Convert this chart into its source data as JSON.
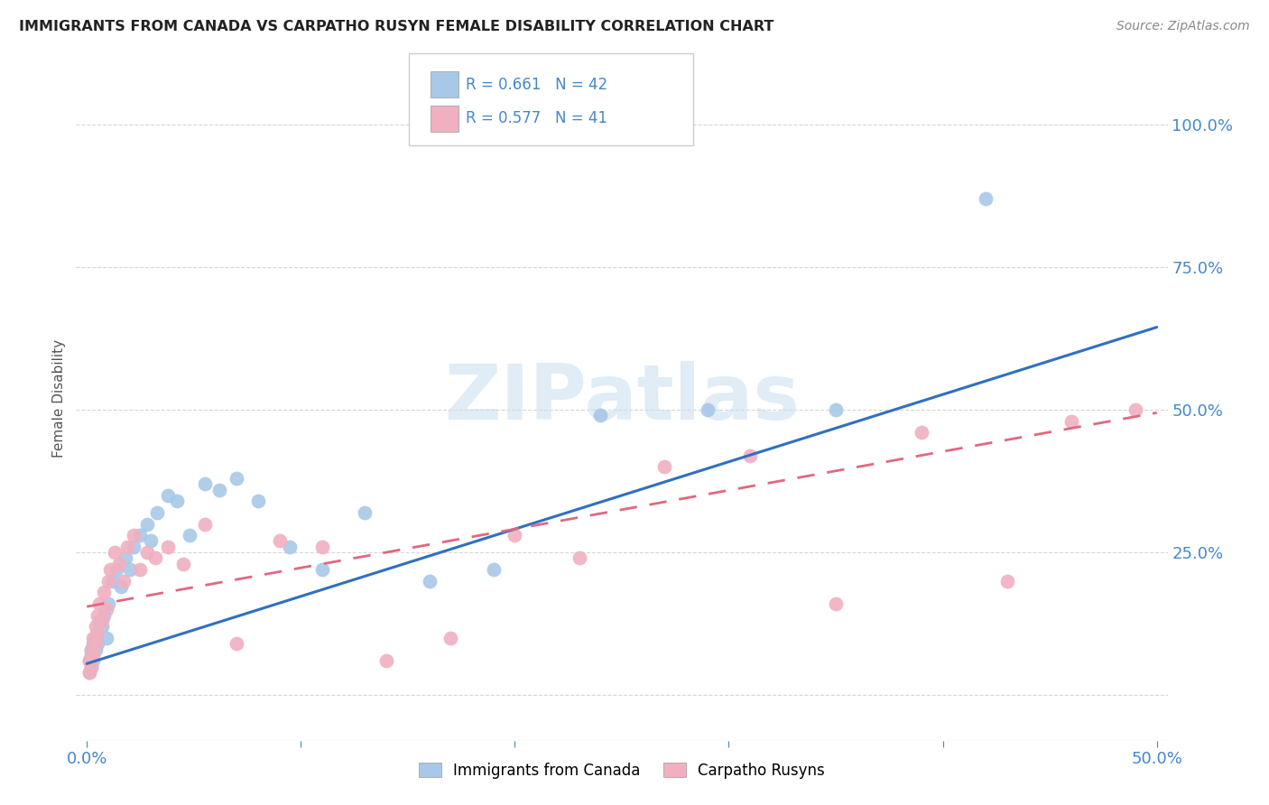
{
  "title": "IMMIGRANTS FROM CANADA VS CARPATHO RUSYN FEMALE DISABILITY CORRELATION CHART",
  "source": "Source: ZipAtlas.com",
  "ylabel": "Female Disability",
  "xlim": [
    -0.005,
    0.505
  ],
  "ylim": [
    -0.08,
    1.12
  ],
  "xtick_positions": [
    0.0,
    0.1,
    0.2,
    0.3,
    0.4,
    0.5
  ],
  "xtick_labels": [
    "0.0%",
    "",
    "",
    "",
    "",
    "50.0%"
  ],
  "ytick_positions": [
    0.0,
    0.25,
    0.5,
    0.75,
    1.0
  ],
  "ytick_labels": [
    "",
    "25.0%",
    "50.0%",
    "75.0%",
    "100.0%"
  ],
  "blue_R": "0.661",
  "blue_N": "42",
  "pink_R": "0.577",
  "pink_N": "41",
  "blue_scatter_color": "#a8c8e8",
  "pink_scatter_color": "#f0b0c0",
  "blue_line_color": "#3070c0",
  "pink_line_color": "#e06880",
  "legend_label_blue": "Immigrants from Canada",
  "legend_label_pink": "Carpatho Rusyns",
  "watermark": "ZIPatlas",
  "background_color": "#ffffff",
  "grid_color": "#cccccc",
  "tick_color": "#4488cc",
  "title_color": "#222222",
  "source_color": "#888888",
  "blue_scatter_x": [
    0.001,
    0.001,
    0.002,
    0.002,
    0.002,
    0.003,
    0.003,
    0.004,
    0.004,
    0.005,
    0.005,
    0.006,
    0.007,
    0.008,
    0.009,
    0.01,
    0.012,
    0.014,
    0.016,
    0.018,
    0.02,
    0.022,
    0.025,
    0.028,
    0.03,
    0.033,
    0.038,
    0.042,
    0.048,
    0.055,
    0.062,
    0.07,
    0.08,
    0.095,
    0.11,
    0.13,
    0.16,
    0.19,
    0.24,
    0.29,
    0.35,
    0.42
  ],
  "blue_scatter_y": [
    0.06,
    0.04,
    0.08,
    0.05,
    0.07,
    0.09,
    0.06,
    0.1,
    0.08,
    0.11,
    0.09,
    0.13,
    0.12,
    0.14,
    0.1,
    0.16,
    0.2,
    0.22,
    0.19,
    0.24,
    0.22,
    0.26,
    0.28,
    0.3,
    0.27,
    0.32,
    0.35,
    0.34,
    0.28,
    0.37,
    0.36,
    0.38,
    0.34,
    0.26,
    0.22,
    0.32,
    0.2,
    0.22,
    0.49,
    0.5,
    0.5,
    0.87
  ],
  "pink_scatter_x": [
    0.001,
    0.001,
    0.002,
    0.002,
    0.003,
    0.003,
    0.004,
    0.004,
    0.005,
    0.005,
    0.006,
    0.007,
    0.008,
    0.009,
    0.01,
    0.011,
    0.013,
    0.015,
    0.017,
    0.019,
    0.022,
    0.025,
    0.028,
    0.032,
    0.038,
    0.045,
    0.055,
    0.07,
    0.09,
    0.11,
    0.14,
    0.17,
    0.2,
    0.23,
    0.27,
    0.31,
    0.35,
    0.39,
    0.43,
    0.46,
    0.49
  ],
  "pink_scatter_y": [
    0.06,
    0.04,
    0.08,
    0.05,
    0.1,
    0.07,
    0.12,
    0.09,
    0.14,
    0.11,
    0.16,
    0.13,
    0.18,
    0.15,
    0.2,
    0.22,
    0.25,
    0.23,
    0.2,
    0.26,
    0.28,
    0.22,
    0.25,
    0.24,
    0.26,
    0.23,
    0.3,
    0.09,
    0.27,
    0.26,
    0.06,
    0.1,
    0.28,
    0.24,
    0.4,
    0.42,
    0.16,
    0.46,
    0.2,
    0.48,
    0.5
  ],
  "blue_line_x0": 0.0,
  "blue_line_x1": 0.5,
  "blue_line_y0": 0.055,
  "blue_line_y1": 0.645,
  "pink_line_x0": 0.0,
  "pink_line_x1": 0.5,
  "pink_line_y0": 0.155,
  "pink_line_y1": 0.495
}
